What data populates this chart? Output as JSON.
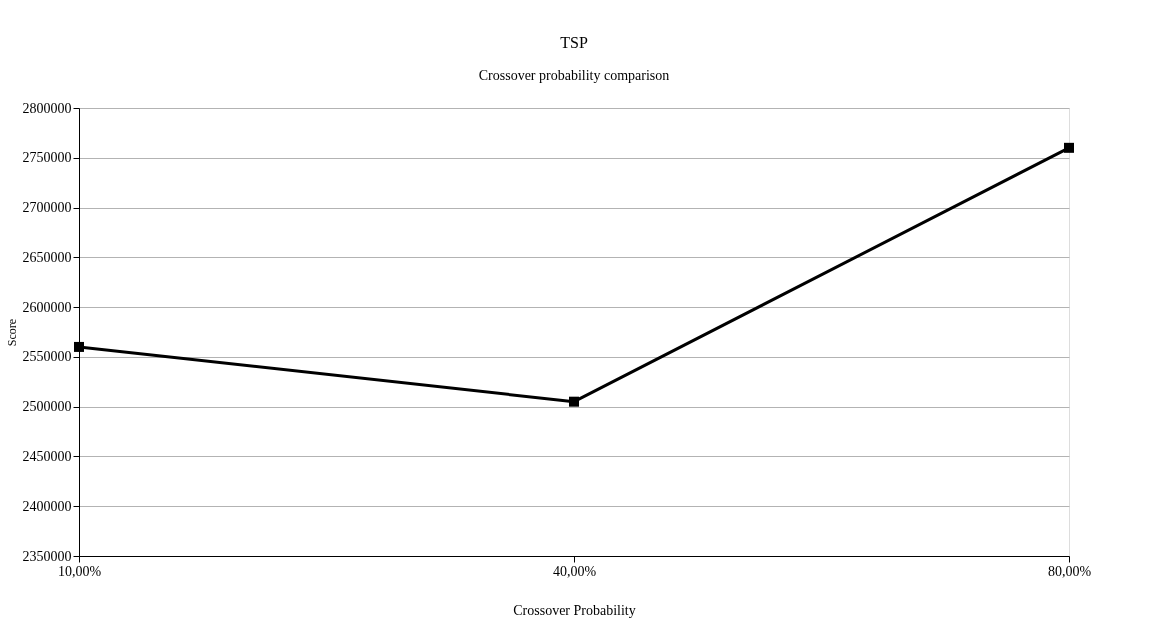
{
  "chart_data": {
    "type": "line",
    "title": "TSP",
    "subtitle": "Crossover probability comparison",
    "xlabel": "Crossover Probability",
    "ylabel": "Score",
    "categories": [
      "10,00%",
      "40,00%",
      "80,00%"
    ],
    "series": [
      {
        "color": "#000000",
        "values": [
          2560000,
          2505000,
          2760000
        ]
      }
    ],
    "ylim": [
      2350000,
      2800000
    ],
    "yticks": [
      2350000,
      2400000,
      2450000,
      2500000,
      2550000,
      2600000,
      2650000,
      2700000,
      2750000,
      2800000
    ],
    "grid": "y",
    "marker": "square",
    "line_style": "solid",
    "legend": false
  }
}
